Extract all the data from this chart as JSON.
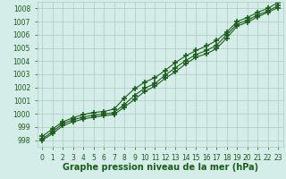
{
  "background_color": "#d4ede8",
  "plot_bg_color": "#d4ede8",
  "grid_color": "#b0c8c0",
  "line_color": "#1a5c1a",
  "marker": "+",
  "markersize": 4,
  "markeredgewidth": 1.2,
  "linewidth": 0.8,
  "xlabel": "Graphe pression niveau de la mer (hPa)",
  "xlabel_fontsize": 7,
  "xlabel_fontweight": "bold",
  "xlabel_color": "#1a5c1a",
  "tick_fontsize": 5.5,
  "tick_color": "#1a5c1a",
  "xlim": [
    -0.5,
    23.5
  ],
  "ylim": [
    997.5,
    1008.5
  ],
  "yticks": [
    998,
    999,
    1000,
    1001,
    1002,
    1003,
    1004,
    1005,
    1006,
    1007,
    1008
  ],
  "xticks": [
    0,
    1,
    2,
    3,
    4,
    5,
    6,
    7,
    8,
    9,
    10,
    11,
    12,
    13,
    14,
    15,
    16,
    17,
    18,
    19,
    20,
    21,
    22,
    23
  ],
  "series": [
    [
      998.0,
      998.5,
      999.1,
      999.4,
      999.6,
      999.75,
      999.85,
      999.95,
      1000.5,
      1001.1,
      1001.7,
      1002.1,
      1002.7,
      1003.2,
      1003.8,
      1004.3,
      1004.55,
      1004.95,
      1005.75,
      1006.65,
      1006.95,
      1007.35,
      1007.7,
      1008.05
    ],
    [
      998.1,
      998.65,
      999.25,
      999.55,
      999.75,
      999.9,
      999.98,
      1000.1,
      1000.7,
      1001.4,
      1001.95,
      1002.3,
      1002.95,
      1003.5,
      1004.05,
      1004.5,
      1004.8,
      1005.2,
      1006.0,
      1006.8,
      1007.1,
      1007.5,
      1007.8,
      1008.2
    ],
    [
      998.3,
      998.85,
      999.4,
      999.7,
      999.95,
      1000.1,
      1000.18,
      1000.35,
      1001.2,
      1001.9,
      1002.4,
      1002.75,
      1003.3,
      1003.9,
      1004.4,
      1004.8,
      1005.15,
      1005.55,
      1006.2,
      1007.0,
      1007.3,
      1007.7,
      1008.0,
      1008.45
    ]
  ]
}
